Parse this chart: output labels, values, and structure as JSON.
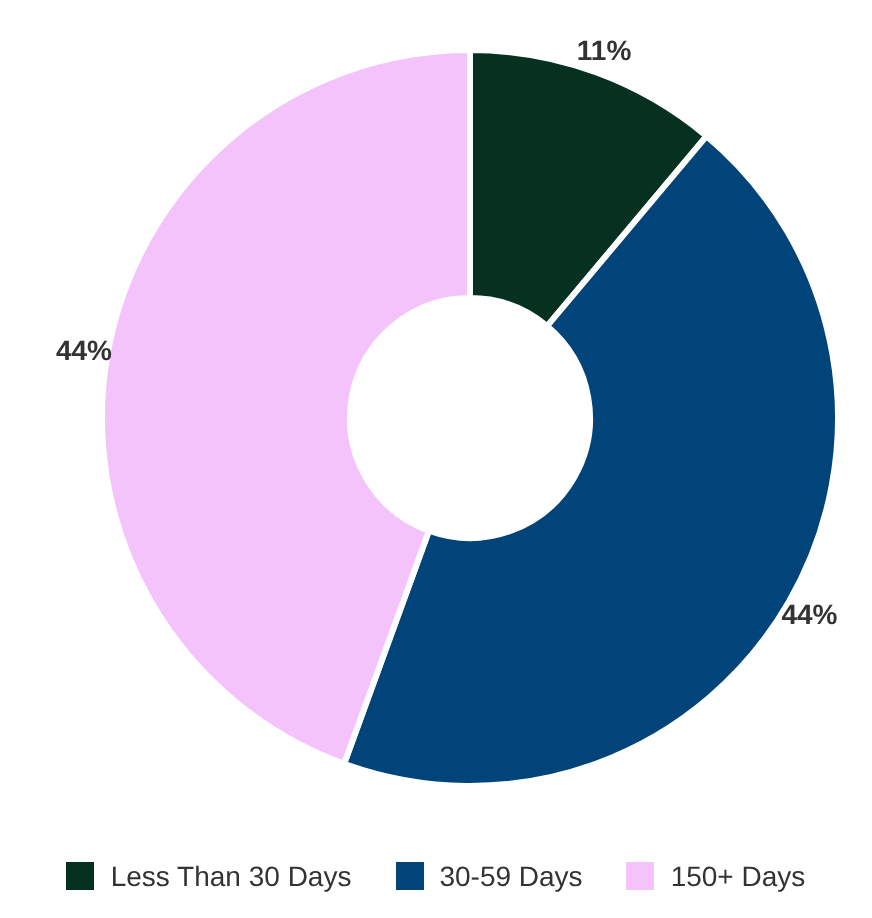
{
  "chart_data": {
    "type": "donut",
    "categories": [
      "Less Than 30 Days",
      "30-59 Days",
      "150+ Days"
    ],
    "values": [
      11,
      44,
      44
    ],
    "colors": [
      "#06301f",
      "#00447a",
      "#f4c3fc"
    ],
    "value_labels": [
      "11%",
      "44%",
      "44%"
    ],
    "legend": "bottom"
  }
}
